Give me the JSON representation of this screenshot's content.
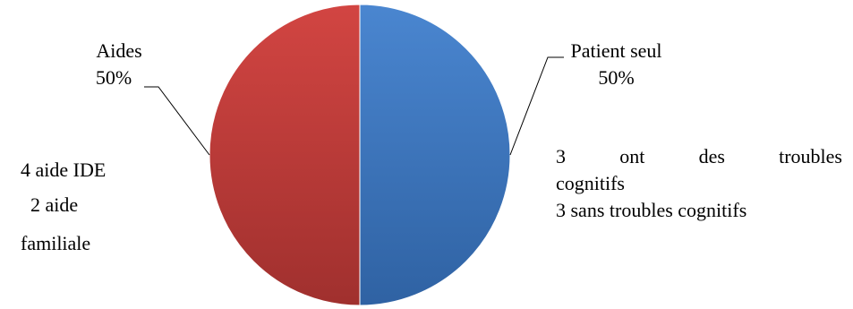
{
  "chart_data": {
    "type": "pie",
    "title": "",
    "slices": [
      {
        "label": "Patient seul",
        "value": 50,
        "value_label": "50%",
        "color": "#3A72B8"
      },
      {
        "label": "Aides",
        "value": 50,
        "value_label": "50%",
        "color": "#C03534"
      }
    ],
    "legend": "none"
  },
  "annotations": {
    "left_lines": [
      "4 aide IDE",
      "2 aide",
      "familiale"
    ],
    "right_line1_words": [
      "3",
      "ont",
      "des",
      "troubles"
    ],
    "right_line2": "cognitifs",
    "right_line3": "3 sans troubles cognitifs"
  }
}
